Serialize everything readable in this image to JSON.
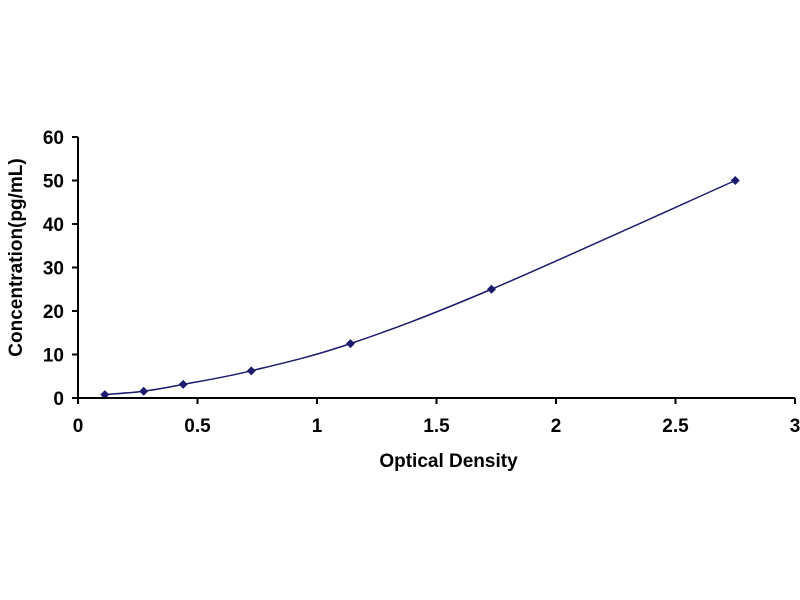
{
  "chart_data": {
    "type": "scatter",
    "title": "",
    "xlabel": "Optical Density",
    "ylabel": "Concentration(pg/mL)",
    "xlim": [
      0,
      3
    ],
    "ylim": [
      0,
      60
    ],
    "x_ticks": [
      "0",
      "0.5",
      "1",
      "1.5",
      "2",
      "2.5",
      "3"
    ],
    "y_ticks": [
      "0",
      "10",
      "20",
      "30",
      "40",
      "50",
      "60"
    ],
    "grid": false,
    "legend": "none",
    "marker": "diamond",
    "fit_line": "smooth curve through points",
    "series": [
      {
        "x": [
          0.112,
          0.275,
          0.44,
          0.725,
          1.14,
          1.73,
          2.75
        ],
        "y": [
          0.78,
          1.56,
          3.12,
          6.25,
          12.5,
          25,
          50
        ]
      }
    ],
    "colors": {
      "marker": "#1a1a6e",
      "line": "#1a1a6e",
      "axis": "#000000"
    }
  }
}
